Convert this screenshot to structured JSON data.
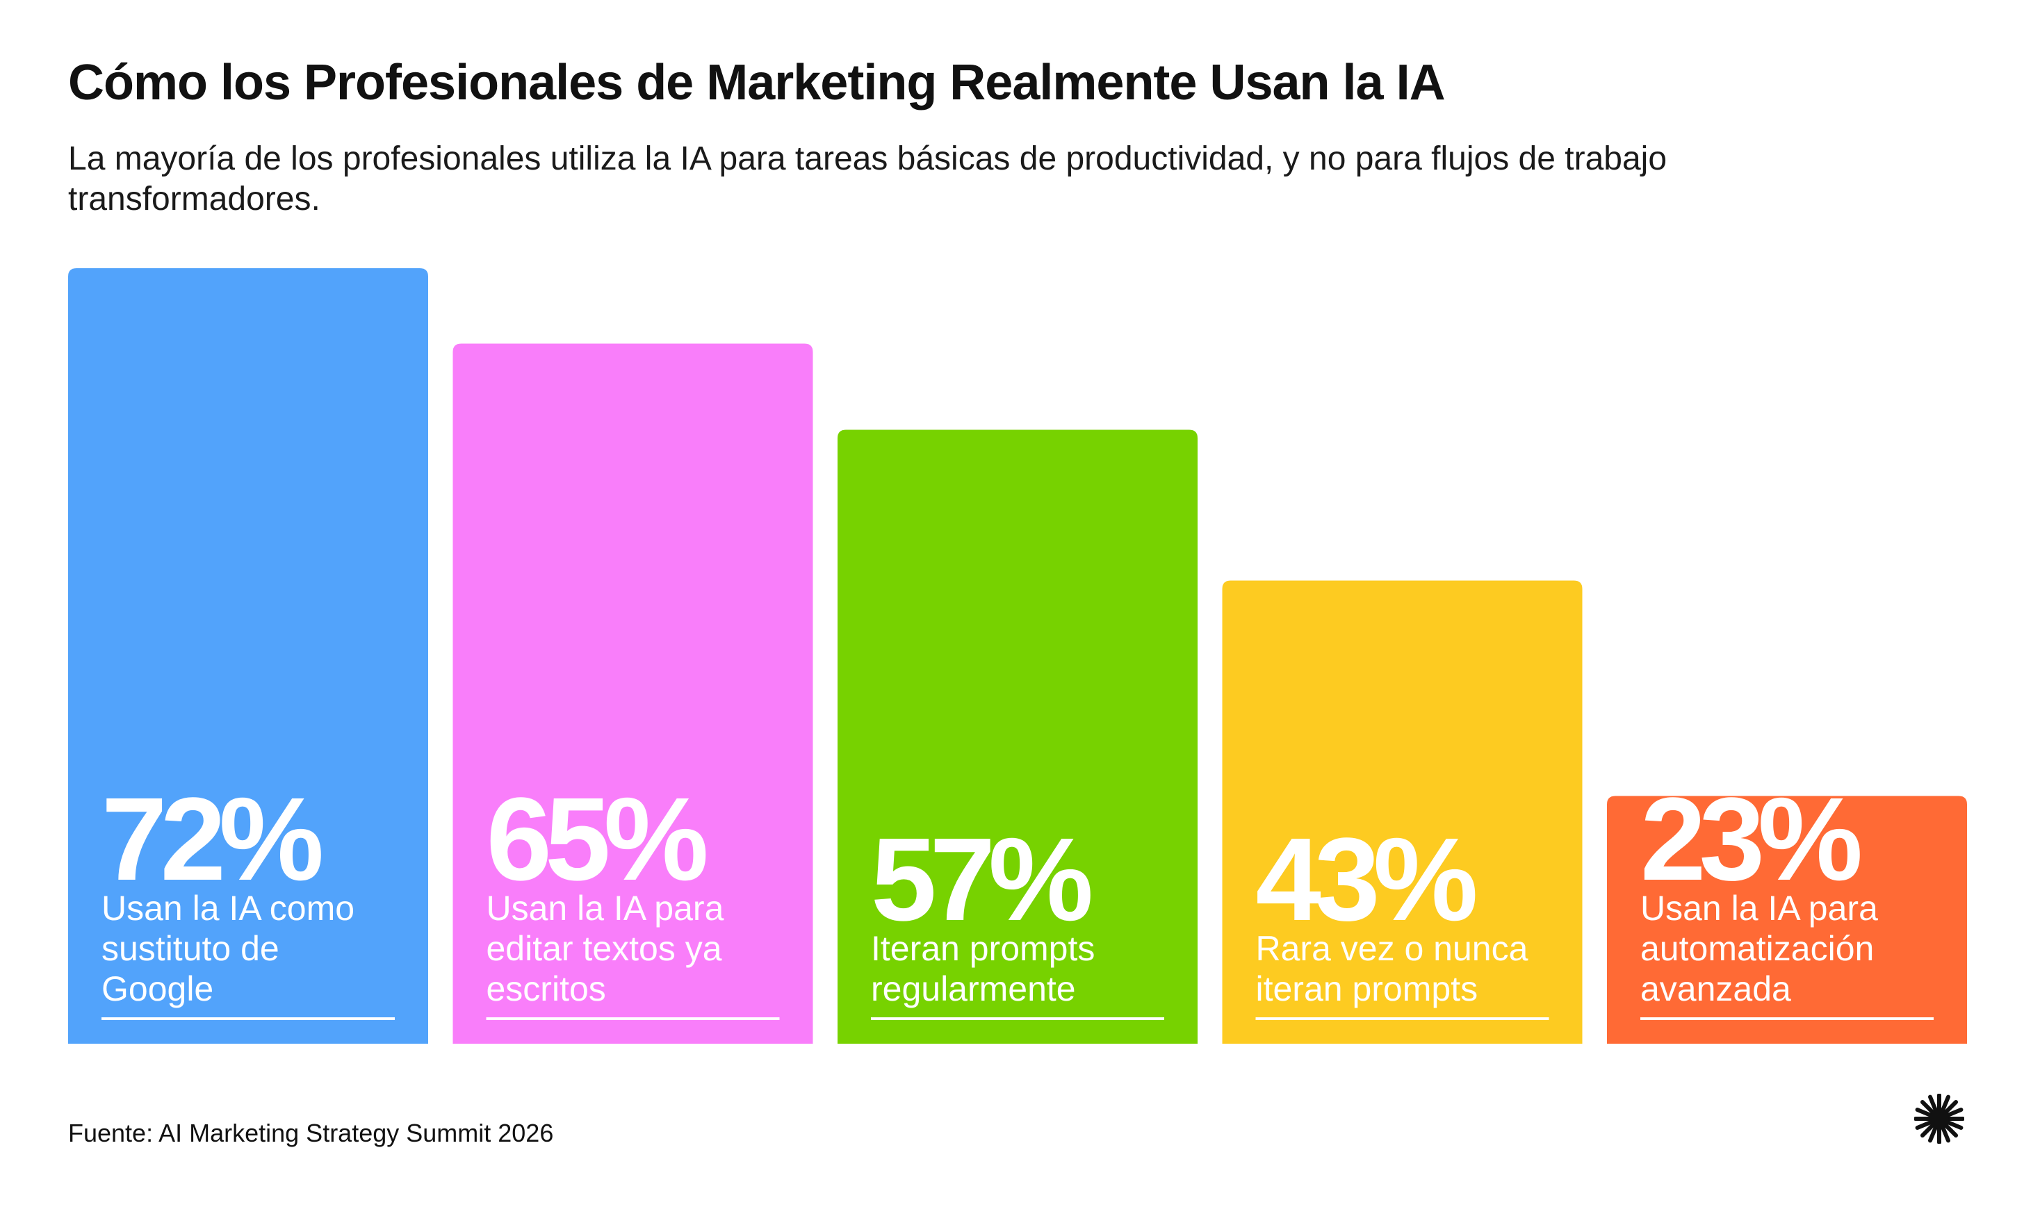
{
  "title": "Cómo los Profesionales de Marketing Realmente Usan la IA",
  "subtitle": "La mayoría de los profesionales utiliza la IA para tareas básicas de productividad, y no para flujos de trabajo transformadores.",
  "source": "Fuente: AI Marketing Strategy Summit 2026",
  "logo_icon": "starburst-icon",
  "chart_data": {
    "type": "bar",
    "title": "Cómo los Profesionales de Marketing Realmente Usan la IA",
    "subtitle": "La mayoría de los profesionales utiliza la IA para tareas básicas de productividad, y no para flujos de trabajo transformadores.",
    "xlabel": "",
    "ylabel": "",
    "unit": "%",
    "grid": false,
    "legend": "none",
    "categories": [
      "Usan la IA como sustituto de Google",
      "Usan la IA para editar textos ya escritos",
      "Iteran prompts regularmente",
      "Rara vez o nunca iteran prompts",
      "Usan la IA para automatización avanzada"
    ],
    "category_lines": [
      [
        "Usan la IA como",
        "sustituto de",
        "Google"
      ],
      [
        "Usan la IA para",
        "editar textos ya",
        "escritos"
      ],
      [
        "Iteran prompts",
        "regularmente"
      ],
      [
        "Rara vez o nunca",
        "iteran prompts"
      ],
      [
        "Usan la IA para",
        "automatización",
        "avanzada"
      ]
    ],
    "values": [
      72,
      65,
      57,
      43,
      23
    ],
    "value_labels": [
      "72%",
      "65%",
      "57%",
      "43%",
      "23%"
    ],
    "colors": [
      "#52A3FB",
      "#F97EFA",
      "#77D200",
      "#FDCB21",
      "#FF6A35"
    ]
  }
}
